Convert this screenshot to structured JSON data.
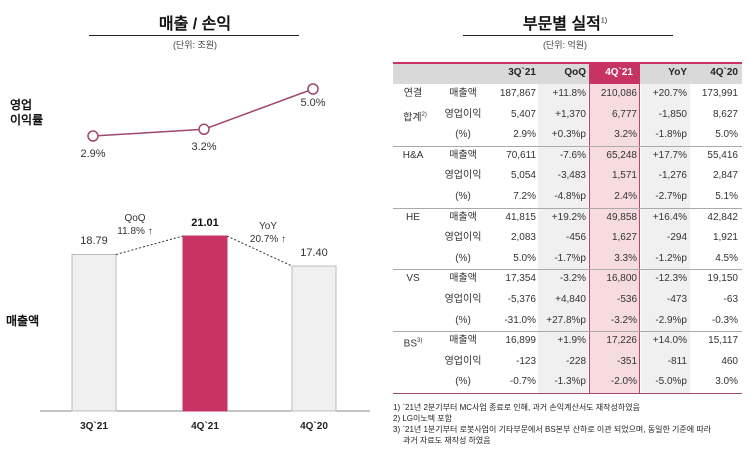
{
  "left": {
    "title": "매출 / 손익",
    "unit": "(단위: 조원)",
    "chart_data": [
      {
        "type": "line",
        "ylabel": "영업\n이익률",
        "ylabel_lines": [
          "영업",
          "이익률"
        ],
        "categories": [
          "3Q`21",
          "4Q`21",
          "4Q`20"
        ],
        "values": [
          2.9,
          3.2,
          5.0
        ],
        "labels": [
          "2.9%",
          "3.2%",
          "5.0%"
        ],
        "color": "#a0476e"
      },
      {
        "type": "bar",
        "ylabel": "매출액",
        "categories": [
          "3Q`21",
          "4Q`21",
          "4Q`20"
        ],
        "values": [
          18.79,
          21.01,
          17.4
        ],
        "labels": [
          "18.79",
          "21.01",
          "17.40"
        ],
        "colors": [
          "#f0f0f0",
          "#c73363",
          "#f0f0f0"
        ],
        "annotations": [
          {
            "line1": "QoQ",
            "line2": "11.8% ↑"
          },
          {
            "line1": "YoY",
            "line2": "20.7% ↑"
          }
        ]
      }
    ]
  },
  "right": {
    "title": "부문별 실적",
    "title_sup": "1)",
    "unit": "(단위: 억원)",
    "accent": "#c73363",
    "columns": [
      "3Q`21",
      "QoQ",
      "4Q`21",
      "YoY",
      "4Q`20"
    ],
    "groups": [
      {
        "name": "연결",
        "name2": "합계",
        "sup": "2)",
        "rows": [
          {
            "label": "매출액",
            "values": [
              "187,867",
              "+11.8%",
              "210,086",
              "+20.7%",
              "173,991"
            ]
          },
          {
            "label": "영업이익",
            "values": [
              "5,407",
              "+1,370",
              "6,777",
              "-1,850",
              "8,627"
            ]
          },
          {
            "label": "(%)",
            "values": [
              "2.9%",
              "+0.3%p",
              "3.2%",
              "-1.8%p",
              "5.0%"
            ]
          }
        ]
      },
      {
        "name": "H&A",
        "name2": "",
        "sup": "",
        "rows": [
          {
            "label": "매출액",
            "values": [
              "70,611",
              "-7.6%",
              "65,248",
              "+17.7%",
              "55,416"
            ]
          },
          {
            "label": "영업이익",
            "values": [
              "5,054",
              "-3,483",
              "1,571",
              "-1,276",
              "2,847"
            ]
          },
          {
            "label": "(%)",
            "values": [
              "7.2%",
              "-4.8%p",
              "2.4%",
              "-2.7%p",
              "5.1%"
            ]
          }
        ]
      },
      {
        "name": "HE",
        "name2": "",
        "sup": "",
        "rows": [
          {
            "label": "매출액",
            "values": [
              "41,815",
              "+19.2%",
              "49,858",
              "+16.4%",
              "42,842"
            ]
          },
          {
            "label": "영업이익",
            "values": [
              "2,083",
              "-456",
              "1,627",
              "-294",
              "1,921"
            ]
          },
          {
            "label": "(%)",
            "values": [
              "5.0%",
              "-1.7%p",
              "3.3%",
              "-1.2%p",
              "4.5%"
            ]
          }
        ]
      },
      {
        "name": "VS",
        "name2": "",
        "sup": "",
        "rows": [
          {
            "label": "매출액",
            "values": [
              "17,354",
              "-3.2%",
              "16,800",
              "-12.3%",
              "19,150"
            ]
          },
          {
            "label": "영업이익",
            "values": [
              "-5,376",
              "+4,840",
              "-536",
              "-473",
              "-63"
            ]
          },
          {
            "label": "(%)",
            "values": [
              "-31.0%",
              "+27.8%p",
              "-3.2%",
              "-2.9%p",
              "-0.3%"
            ]
          }
        ]
      },
      {
        "name": "BS",
        "name2": "",
        "sup": "3)",
        "rows": [
          {
            "label": "매출액",
            "values": [
              "16,899",
              "+1.9%",
              "17,226",
              "+14.0%",
              "15,117"
            ]
          },
          {
            "label": "영업이익",
            "values": [
              "-123",
              "-228",
              "-351",
              "-811",
              "460"
            ]
          },
          {
            "label": "(%)",
            "values": [
              "-0.7%",
              "-1.3%p",
              "-2.0%",
              "-5.0%p",
              "3.0%"
            ]
          }
        ]
      }
    ],
    "notes": [
      "1) `21년 2분기부터 MC사업 종료로 인해, 과거 손익계산서도 재작성하였음",
      "2) LG이노텍 포함",
      "3) `21년 1분기부터 로봇사업이 기타부문에서 BS본부 산하로 이관 되었으며, 동일한 기준에 따라",
      "    과거 자료도 재작성 하였음"
    ]
  }
}
